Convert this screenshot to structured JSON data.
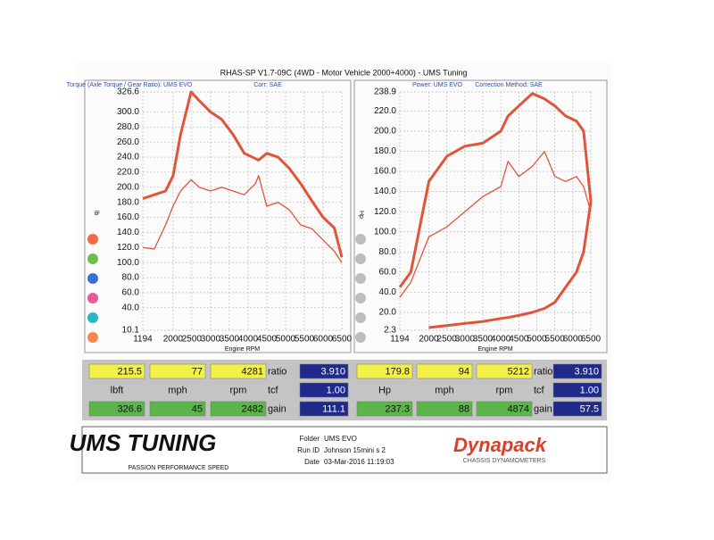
{
  "header": {
    "title": "RHAS-SP V1.7-09C  (4WD - Motor Vehicle 2000+4000) - UMS Tuning"
  },
  "chart_data": [
    {
      "type": "line",
      "title": "Torque (Axle Torque / Gear Ratio): UMS EVO",
      "subtitle": "Corr: SAE",
      "y_label": "lb",
      "x_label": "Engine RPM",
      "x": [
        1194,
        1500,
        1800,
        2000,
        2200,
        2482,
        2700,
        3000,
        3300,
        3600,
        3900,
        4200,
        4281,
        4500,
        4800,
        5100,
        5400,
        5700,
        6000,
        6300,
        6500
      ],
      "series": [
        {
          "color": "#e0553a",
          "width": 3,
          "values": [
            185,
            190,
            195,
            215,
            270,
            326.6,
            315,
            300,
            290,
            270,
            245,
            238,
            236,
            245,
            240,
            225,
            205,
            182,
            160,
            146,
            107
          ]
        },
        {
          "color": "#e0553a",
          "width": 1.3,
          "values": [
            120,
            118,
            150,
            175,
            195,
            210,
            200,
            195,
            200,
            195,
            190,
            205,
            215.5,
            175,
            180,
            170,
            150,
            145,
            130,
            115,
            100
          ]
        }
      ],
      "xlim": [
        1194,
        6500
      ],
      "xticks": [
        1194,
        2000,
        2500,
        3000,
        3500,
        4000,
        4500,
        5000,
        5500,
        6000,
        6500
      ],
      "ylim": [
        10.1,
        326.6
      ],
      "yticks": [
        10.1,
        {
          "value": 40,
          "label": "40.0"
        },
        {
          "value": 60,
          "label": "60.0"
        },
        {
          "value": 80,
          "label": "80.0"
        },
        {
          "value": 100,
          "label": "100.0"
        },
        {
          "value": 120,
          "label": "120.0"
        },
        {
          "value": 140,
          "label": "140.0"
        },
        {
          "value": 160,
          "label": "160.0"
        },
        {
          "value": 180,
          "label": "180.0"
        },
        {
          "value": 200,
          "label": "200.0"
        },
        {
          "value": 220,
          "label": "220.0"
        },
        {
          "value": 240,
          "label": "240.0"
        },
        {
          "value": 260,
          "label": "260.0"
        },
        {
          "value": 280,
          "label": "280.0"
        },
        {
          "value": 300,
          "label": "300.0"
        },
        326.6
      ],
      "grid": true
    },
    {
      "type": "line",
      "title": "Power: UMS EVO",
      "subtitle": "Correction Method: SAE",
      "y_label": "Hp",
      "x_label": "Engine RPM",
      "x": [
        1194,
        1500,
        2000,
        2500,
        3000,
        3500,
        4000,
        4200,
        4500,
        4874,
        5212,
        5500,
        5800,
        6100,
        6300,
        6500
      ],
      "series": [
        {
          "color": "#e0553a",
          "width": 3,
          "values": [
            45,
            60,
            150,
            175,
            185,
            188,
            200,
            215,
            225,
            237.3,
            232,
            225,
            215,
            210,
            200,
            130
          ]
        },
        {
          "color": "#e0553a",
          "width": 1.3,
          "values": [
            35,
            50,
            95,
            105,
            120,
            135,
            145,
            170,
            155,
            165,
            179.8,
            155,
            150,
            155,
            145,
            120
          ]
        },
        {
          "color": "#e0553a",
          "width": 3,
          "values": [
            null,
            null,
            5,
            7,
            9,
            11,
            14,
            15,
            17,
            20,
            24,
            30,
            45,
            60,
            80,
            130
          ]
        }
      ],
      "xlim": [
        1194,
        6500
      ],
      "xticks": [
        1194,
        2000,
        2500,
        3000,
        3500,
        4000,
        4500,
        5000,
        5500,
        6000,
        6500
      ],
      "ylim": [
        2.3,
        238.9
      ],
      "yticks": [
        2.3,
        {
          "value": 20,
          "label": "20.0"
        },
        {
          "value": 40,
          "label": "40.0"
        },
        {
          "value": 60,
          "label": "60.0"
        },
        {
          "value": 80,
          "label": "80.0"
        },
        {
          "value": 100,
          "label": "100.0"
        },
        {
          "value": 120,
          "label": "120.0"
        },
        {
          "value": 140,
          "label": "140.0"
        },
        {
          "value": 160,
          "label": "160.0"
        },
        {
          "value": 180,
          "label": "180.0"
        },
        {
          "value": 200,
          "label": "200.0"
        },
        {
          "value": 220,
          "label": "220.0"
        },
        238.9
      ],
      "grid": true
    }
  ],
  "readouts": {
    "left": [
      [
        "215.5",
        "77",
        "4281",
        "ratio",
        "3.910"
      ],
      [
        "lbft",
        "mph",
        "rpm",
        "tcf",
        "1.00"
      ],
      [
        "326.6",
        "45",
        "2482",
        "gain",
        "111.1"
      ]
    ],
    "right": [
      [
        "179.8",
        "94",
        "5212",
        "ratio",
        "3.910"
      ],
      [
        "Hp",
        "mph",
        "rpm",
        "tcf",
        "1.00"
      ],
      [
        "237.3",
        "88",
        "4874",
        "gain",
        "57.5"
      ]
    ]
  },
  "footer": {
    "logo": "UMS TUNING",
    "tagline": "PASSION PERFORMANCE SPEED",
    "folder_label": "Folder",
    "folder": "UMS EVO",
    "run_label": "Run ID",
    "run": "Johnson 15mini s 2",
    "date_label": "Date",
    "date": "03-Mar-2016  11:19:03",
    "brand": "Dynapack",
    "brand_sub": "CHASSIS DYNAMOMETERS"
  }
}
